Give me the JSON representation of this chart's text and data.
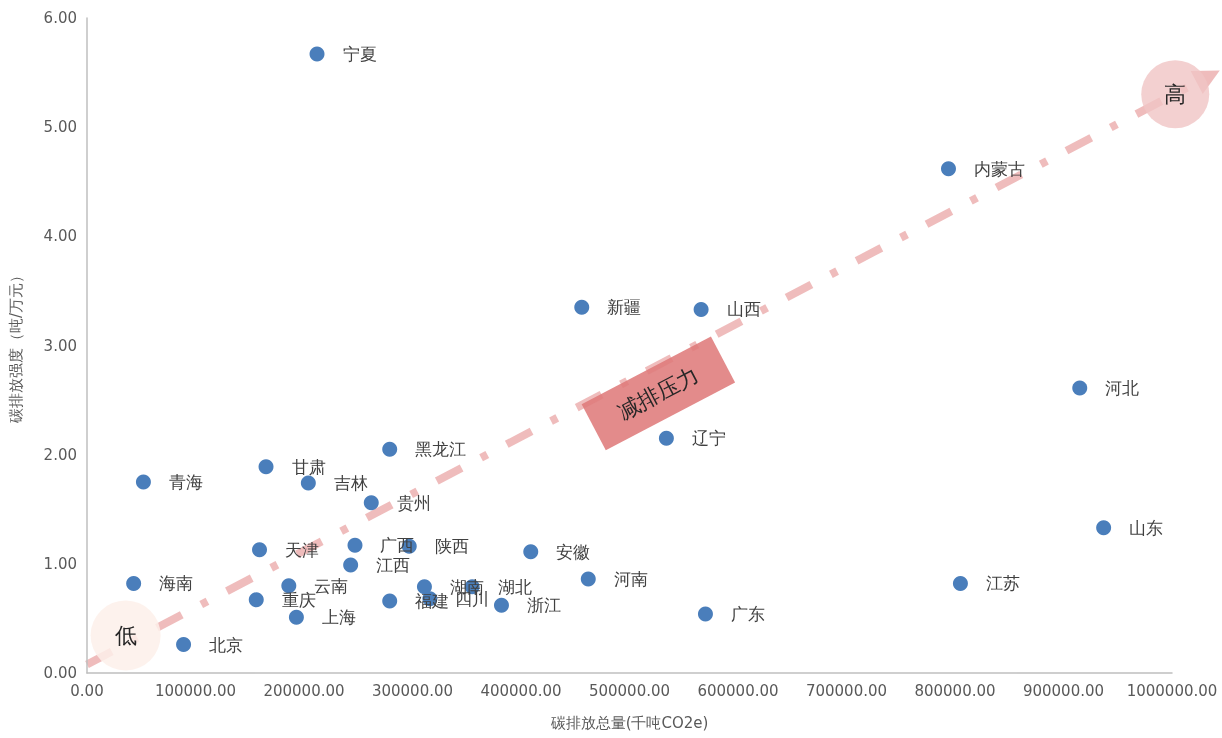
{
  "chart_data": {
    "type": "scatter",
    "xlabel": "碳排放总量(千吨CO2e)",
    "ylabel": "碳排放强度（吨/万元）",
    "annotations": [
      "低",
      "高",
      "减排压力"
    ],
    "x": [
      212000,
      456000,
      566000,
      794000,
      52000,
      165000,
      204000,
      279000,
      262000,
      159000,
      247000,
      297000,
      243000,
      43000,
      186000,
      156000,
      193000,
      89000,
      279000,
      311000,
      316000,
      355000,
      382000,
      409000,
      462000,
      534000,
      915000,
      937000,
      805000,
      570000
    ],
    "values": [
      5.67,
      3.35,
      3.33,
      4.62,
      1.75,
      1.89,
      1.74,
      2.05,
      1.56,
      1.13,
      1.17,
      1.16,
      0.99,
      0.82,
      0.8,
      0.67,
      0.51,
      0.26,
      0.66,
      0.79,
      0.68,
      0.79,
      0.62,
      1.11,
      0.86,
      2.15,
      2.61,
      1.33,
      0.82,
      0.54
    ],
    "value_labels": [
      "宁夏",
      "新疆",
      "山西",
      "内蒙古",
      "青海",
      "甘肃",
      "吉林",
      "黑龙江",
      "贵州",
      "天津",
      "广西",
      "陕西",
      "江西",
      "海南",
      "云南",
      "重庆",
      "上海",
      "北京",
      "福建",
      "湖南",
      "四川",
      "湖北",
      "浙江",
      "安徽",
      "河南",
      "辽宁",
      "河北",
      "山东",
      "江苏",
      "广东"
    ],
    "color": "#4a7ebb",
    "marker": "circle",
    "xlim": [
      0,
      1000000
    ],
    "xticks": [
      {
        "value": 0,
        "label": "0.00"
      },
      {
        "value": 100000,
        "label": "100000.00"
      },
      {
        "value": 200000,
        "label": "200000.00"
      },
      {
        "value": 300000,
        "label": "300000.00"
      },
      {
        "value": 400000,
        "label": "400000.00"
      },
      {
        "value": 500000,
        "label": "500000.00"
      },
      {
        "value": 600000,
        "label": "600000.00"
      },
      {
        "value": 700000,
        "label": "700000.00"
      },
      {
        "value": 800000,
        "label": "800000.00"
      },
      {
        "value": 900000,
        "label": "900000.00"
      },
      {
        "value": 1000000,
        "label": "1000000.00"
      }
    ],
    "ylim": [
      0,
      6
    ],
    "yticks": [
      {
        "value": 0,
        "label": "0.00"
      },
      {
        "value": 1,
        "label": "1.00"
      },
      {
        "value": 2,
        "label": "2.00"
      },
      {
        "value": 3,
        "label": "3.00"
      },
      {
        "value": 4,
        "label": "4.00"
      },
      {
        "value": 5,
        "label": "5.00"
      },
      {
        "value": 6,
        "label": "6.00"
      }
    ]
  }
}
